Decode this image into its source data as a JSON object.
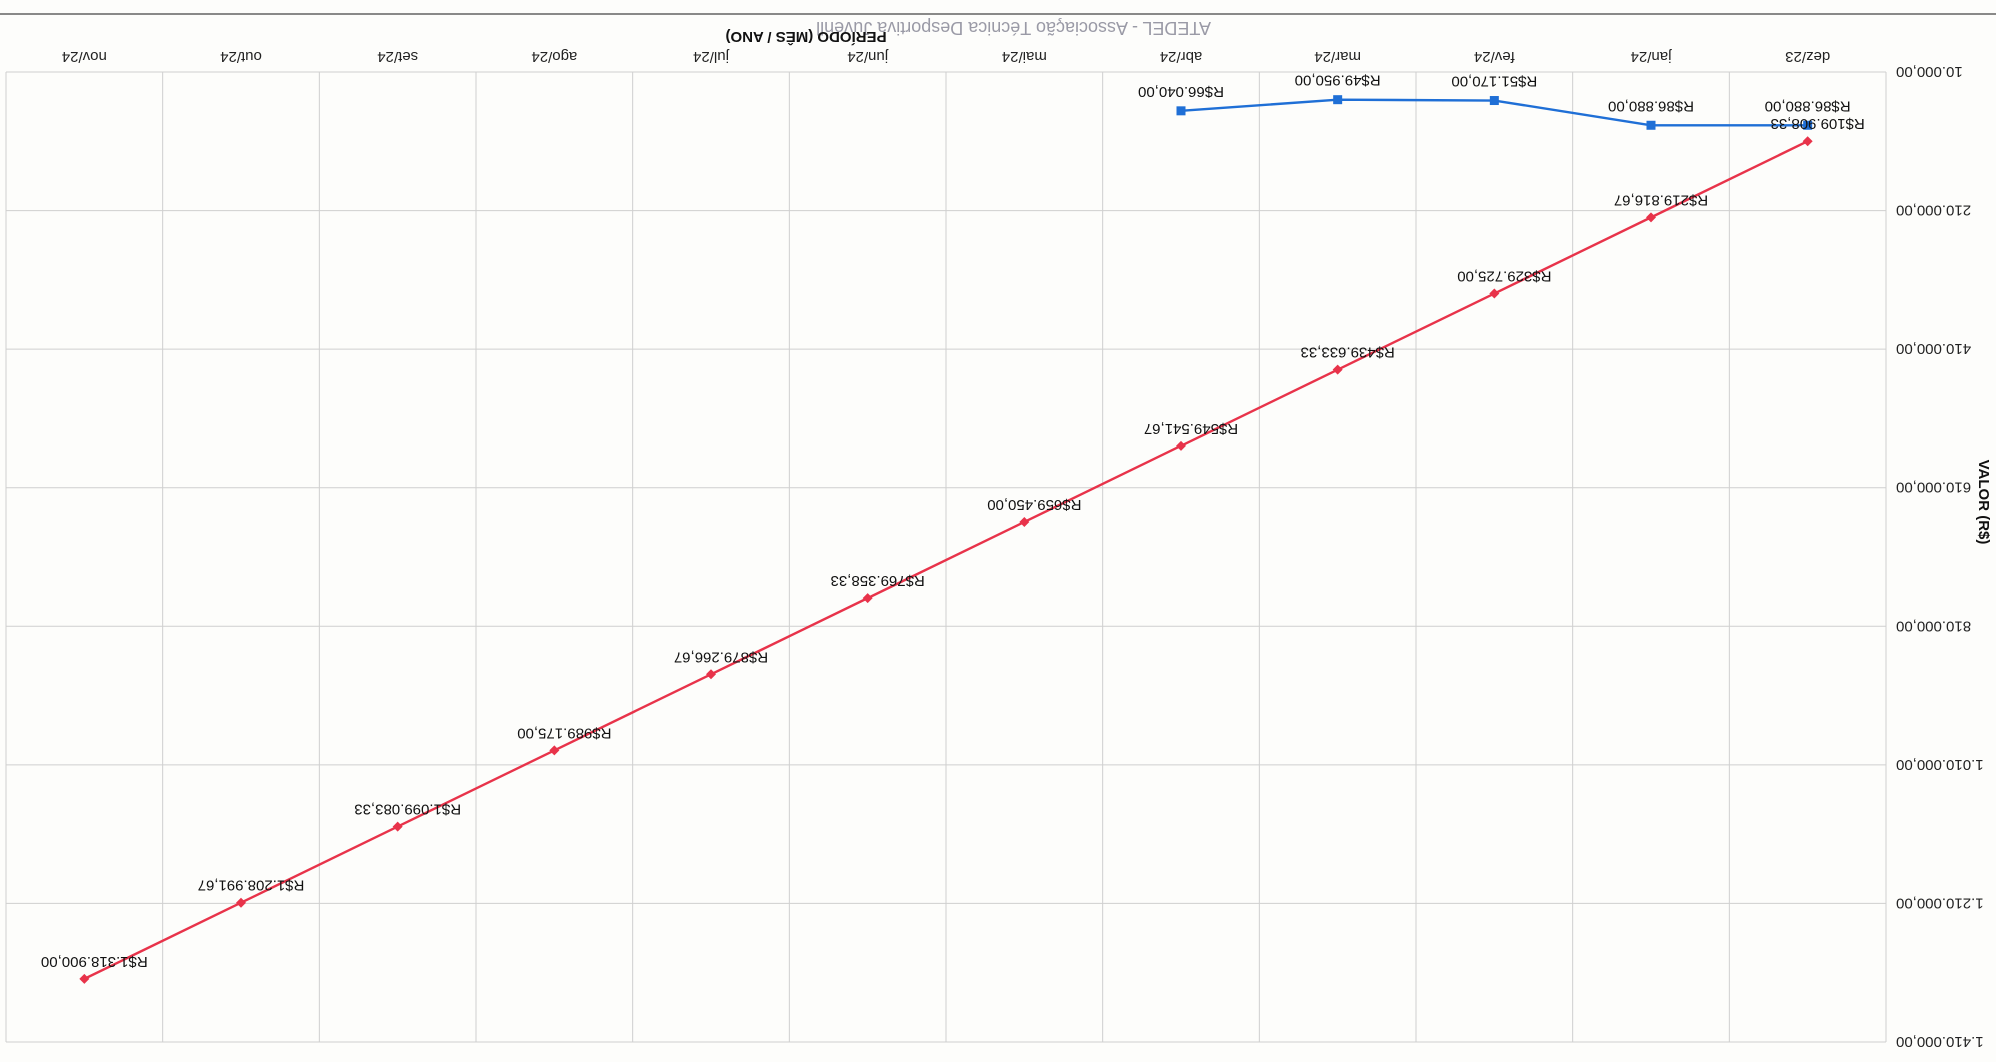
{
  "stamp_text": "ATEDEL - Associação Técnica Desportiva Juvenil",
  "chart_data": {
    "type": "line",
    "xlabel": "PERÍODO (MÊS / ANO)",
    "ylabel": "VALOR (R$)",
    "categories": [
      "dez/23",
      "jan/24",
      "fev/24",
      "mar/24",
      "abr/24",
      "mai/24",
      "jun/24",
      "jul/24",
      "ago/24",
      "set/24",
      "out/24",
      "nov/24"
    ],
    "y_ticks": [
      "10.000,00",
      "210.000,00",
      "410.000,00",
      "610.000,00",
      "810.000,00",
      "1.010.000,00",
      "1.210.000,00",
      "1.410.000,00"
    ],
    "ylim": [
      10000,
      1410000
    ],
    "grid": true,
    "series": [
      {
        "color": "#1f6fd6",
        "marker": "square",
        "values": [
          86880.0,
          86880.0,
          51170.0,
          49950.0,
          66040.0,
          null,
          null,
          null,
          null,
          null,
          null,
          null
        ],
        "labels": [
          "R$86.880,00",
          "R$86.880,00",
          "R$51.170,00",
          "R$49.950,00",
          "R$66.040,00",
          "",
          "",
          "",
          "",
          "",
          "",
          ""
        ]
      },
      {
        "color": "#e8334a",
        "marker": "diamond",
        "values": [
          109908.33,
          219816.67,
          329725.0,
          439633.33,
          549541.67,
          659450.0,
          769358.33,
          879266.67,
          989175.0,
          1099083.33,
          1208991.67,
          1318900.0
        ],
        "labels": [
          "R$109.908,33",
          "R$219.816,67",
          "R$329.725,00",
          "R$439.633,33",
          "R$549.541,67",
          "R$659.450,00",
          "R$769.358,33",
          "R$879.266,67",
          "R$989.175,00",
          "R$1.099.083,33",
          "R$1.208.991,67",
          "R$1.318.900,00"
        ]
      }
    ]
  }
}
